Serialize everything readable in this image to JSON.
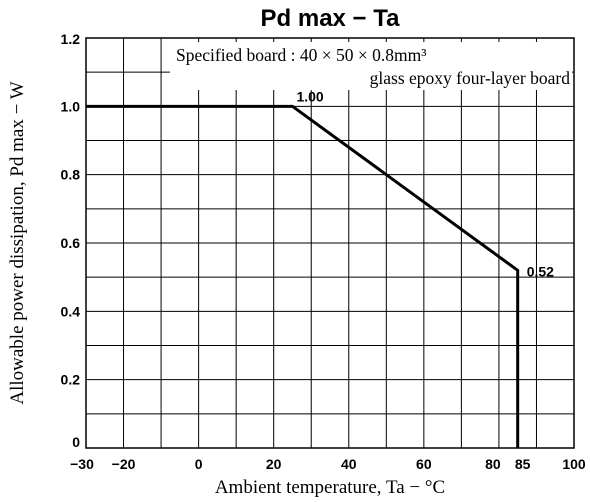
{
  "chart_data": {
    "type": "line",
    "title": "Pd max  −  Ta",
    "xlabel": "Ambient temperature,  Ta  −  °C",
    "ylabel": "Allowable power dissipation,  Pd max  −  W",
    "xlim": [
      -30,
      100
    ],
    "ylim": [
      0,
      1.2
    ],
    "x_ticks": [
      -30,
      -20,
      0,
      20,
      40,
      60,
      80,
      85,
      100
    ],
    "x_tick_labels": [
      "−30",
      "−20",
      "0",
      "20",
      "40",
      "60",
      "80",
      "85",
      "100"
    ],
    "x_grid": [
      -30,
      -20,
      -10,
      0,
      10,
      20,
      30,
      40,
      50,
      60,
      70,
      80,
      90,
      100
    ],
    "y_ticks": [
      0,
      0.2,
      0.4,
      0.6,
      0.8,
      1.0,
      1.2
    ],
    "y_tick_labels": [
      "0",
      "0.2",
      "0.4",
      "0.6",
      "0.8",
      "1.0",
      "1.2"
    ],
    "y_grid": [
      0,
      0.1,
      0.2,
      0.3,
      0.4,
      0.5,
      0.6,
      0.7,
      0.8,
      0.9,
      1.0,
      1.1,
      1.2
    ],
    "grid": true,
    "series": [
      {
        "x": [
          -30,
          25,
          85,
          85
        ],
        "y": [
          1.0,
          1.0,
          0.52,
          0
        ]
      }
    ],
    "data_labels": [
      {
        "text": "1.00",
        "x": 25,
        "y": 1.0
      },
      {
        "text": "0.52",
        "x": 85,
        "y": 0.52
      }
    ],
    "annotations": [
      "Specified board : 40 × 50 × 0.8mm³",
      "glass epoxy four-layer board"
    ]
  }
}
